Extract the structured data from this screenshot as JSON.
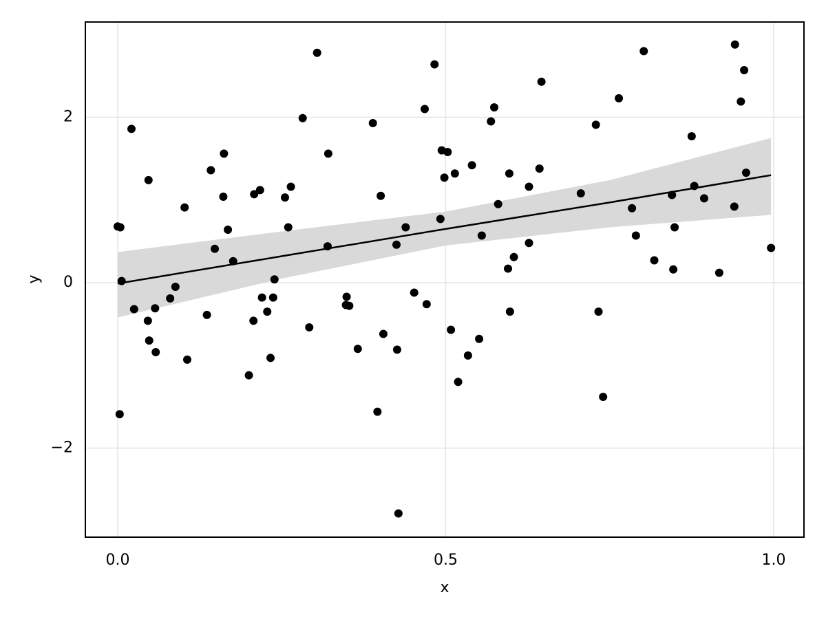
{
  "chart_data": {
    "type": "scatter",
    "xlabel": "x",
    "ylabel": "y",
    "x": [
      0.0,
      0.004,
      0.006,
      0.003,
      0.021,
      0.025,
      0.047,
      0.046,
      0.048,
      0.057,
      0.058,
      0.08,
      0.088,
      0.102,
      0.106,
      0.136,
      0.142,
      0.148,
      0.161,
      0.162,
      0.168,
      0.176,
      0.2,
      0.207,
      0.208,
      0.217,
      0.22,
      0.228,
      0.233,
      0.237,
      0.239,
      0.255,
      0.26,
      0.264,
      0.282,
      0.292,
      0.304,
      0.32,
      0.321,
      0.348,
      0.349,
      0.353,
      0.366,
      0.389,
      0.396,
      0.401,
      0.405,
      0.425,
      0.426,
      0.428,
      0.439,
      0.452,
      0.468,
      0.471,
      0.483,
      0.492,
      0.494,
      0.498,
      0.503,
      0.508,
      0.514,
      0.519,
      0.534,
      0.54,
      0.551,
      0.555,
      0.569,
      0.574,
      0.58,
      0.595,
      0.597,
      0.598,
      0.604,
      0.627,
      0.627,
      0.643,
      0.646,
      0.706,
      0.729,
      0.733,
      0.74,
      0.764,
      0.784,
      0.79,
      0.802,
      0.818,
      0.845,
      0.847,
      0.849,
      0.875,
      0.879,
      0.894,
      0.917,
      0.94,
      0.941,
      0.95,
      0.955,
      0.958,
      0.996
    ],
    "values": [
      0.68,
      0.67,
      0.02,
      -1.59,
      1.86,
      -0.32,
      1.24,
      -0.46,
      -0.7,
      -0.31,
      -0.84,
      -0.19,
      -0.05,
      0.91,
      -0.93,
      -0.39,
      1.36,
      0.41,
      1.04,
      1.56,
      0.64,
      0.26,
      -1.12,
      -0.46,
      1.07,
      1.12,
      -0.18,
      -0.35,
      -0.91,
      -0.18,
      0.04,
      1.03,
      0.67,
      1.16,
      1.99,
      -0.54,
      2.78,
      0.44,
      1.56,
      -0.27,
      -0.17,
      -0.28,
      -0.8,
      1.93,
      -1.56,
      1.05,
      -0.62,
      0.46,
      -0.81,
      -2.79,
      0.67,
      -0.12,
      2.1,
      -0.26,
      2.64,
      0.77,
      1.6,
      1.27,
      1.58,
      -0.57,
      1.32,
      -1.2,
      -0.88,
      1.42,
      -0.68,
      0.57,
      1.95,
      2.12,
      0.95,
      0.17,
      1.32,
      -0.35,
      0.31,
      1.16,
      0.48,
      1.38,
      2.43,
      1.08,
      1.91,
      -0.35,
      -1.38,
      2.23,
      0.9,
      0.57,
      2.8,
      0.27,
      1.06,
      0.16,
      0.67,
      1.77,
      1.17,
      1.02,
      0.12,
      0.92,
      2.88,
      2.19,
      2.57,
      1.33,
      0.42
    ],
    "color": "#000000",
    "fit": {
      "x": [
        0,
        0.25,
        0.5,
        0.75,
        0.996
      ],
      "values": [
        -0.01,
        0.32,
        0.65,
        0.97,
        1.3
      ],
      "lower": [
        -0.42,
        0.05,
        0.45,
        0.67,
        0.82
      ],
      "upper": [
        0.37,
        0.62,
        0.86,
        1.24,
        1.75
      ],
      "color": "#000000",
      "band_color": "#d9d9d9"
    },
    "xlim": [
      -0.0493,
      1.0462
    ],
    "ylim": [
      -3.077,
      3.152
    ],
    "xticks": [
      {
        "value": 0,
        "label": "0.0"
      },
      0.5,
      {
        "value": 1,
        "label": "1.0"
      }
    ],
    "yticks": [
      {
        "value": -2,
        "label": "−2"
      },
      0,
      2
    ],
    "grid": true
  }
}
